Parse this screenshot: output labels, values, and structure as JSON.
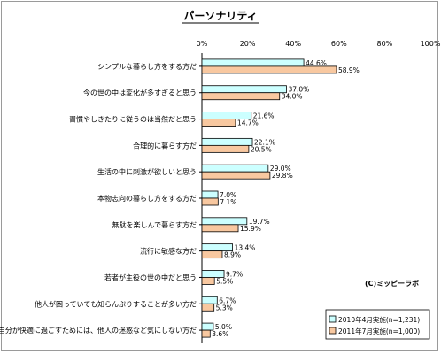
{
  "chart_data": {
    "type": "bar",
    "orientation": "horizontal",
    "title": "パーソナリティ",
    "credit": "(C)ミッピーラボ",
    "xlim": [
      0,
      100
    ],
    "xticks": [
      "0%",
      "20%",
      "40%",
      "60%",
      "80%",
      "100%"
    ],
    "grid": false,
    "legend_position": "bottom-right",
    "categories": [
      "シンプルな暮らし方をする方だ",
      "今の世の中は変化が多すぎると思う",
      "習慣やしきたりに従うのは当然だと思う",
      "合理的に暮らす方だ",
      "生活の中に刺激が欲しいと思う",
      "本物志向の暮らし方をする方だ",
      "無駄を楽しんで暮らす方だ",
      "流行に敏感な方だ",
      "若者が主役の世の中だと思う",
      "他人が困っていても知らんぷりすることが多い方だ",
      "自分が快適に過ごすためには、他人の迷惑など気にしない方だ"
    ],
    "series": [
      {
        "name": "2010年4月実施(n=1,231)",
        "color": "#ccffff",
        "values": [
          44.6,
          37.0,
          21.6,
          22.1,
          29.0,
          7.0,
          19.7,
          13.4,
          9.7,
          6.7,
          5.0
        ],
        "labels": [
          "44.6%",
          "37.0%",
          "21.6%",
          "22.1%",
          "29.0%",
          "7.0%",
          "19.7%",
          "13.4%",
          "9.7%",
          "6.7%",
          "5.0%"
        ]
      },
      {
        "name": "2011年7月実施(n=1,000)",
        "color": "#f8c8a0",
        "values": [
          58.9,
          34.0,
          14.7,
          20.5,
          29.8,
          7.1,
          15.9,
          8.9,
          5.5,
          5.3,
          3.6
        ],
        "labels": [
          "58.9%",
          "34.0%",
          "14.7%",
          "20.5%",
          "29.8%",
          "7.1%",
          "15.9%",
          "8.9%",
          "5.5%",
          "5.3%",
          "3.6%"
        ]
      }
    ]
  }
}
